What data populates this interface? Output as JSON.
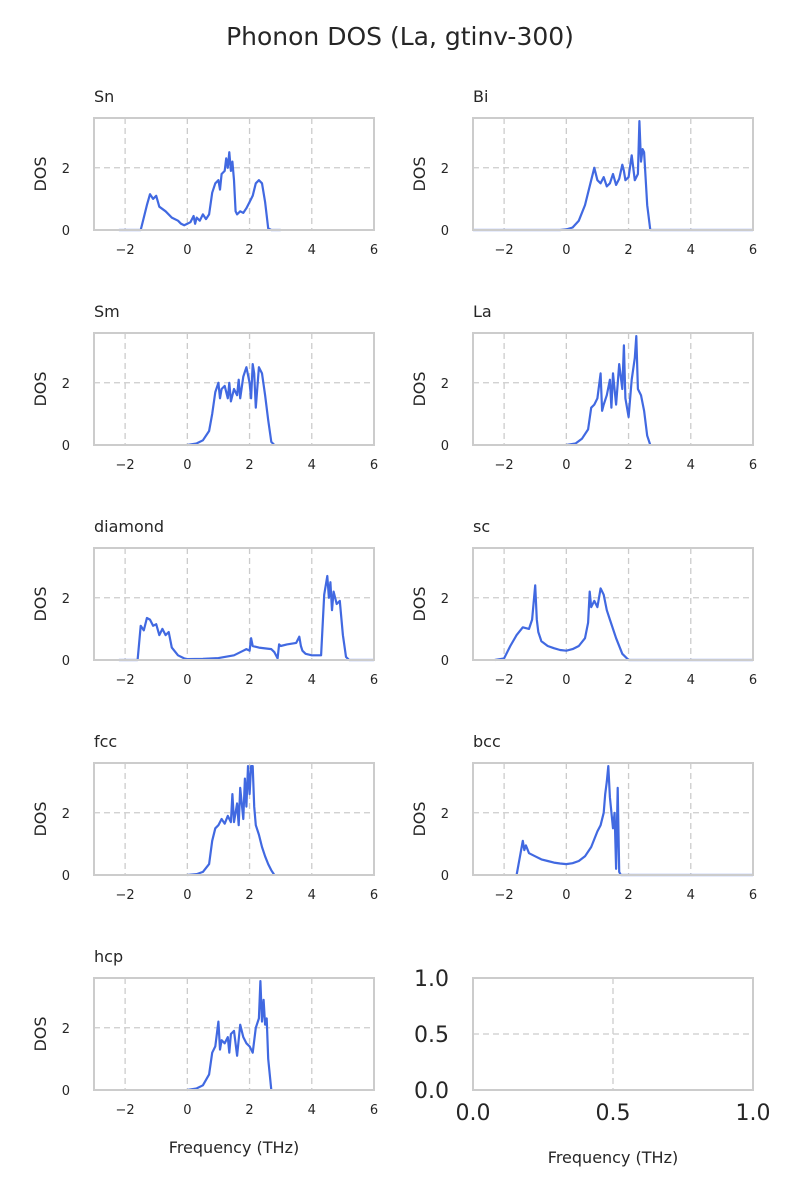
{
  "figure": {
    "title": "Phonon DOS (La, gtinv-300)"
  },
  "colors": {
    "series": "#4169e1",
    "frame": "#cccccc",
    "grid": "#cccccc",
    "text": "#262626"
  },
  "chart_data": [
    {
      "type": "line",
      "title": "Sn",
      "xlabel": "",
      "ylabel": "DOS",
      "xlim": [
        -3,
        6
      ],
      "ylim": [
        0,
        3.6
      ],
      "xticks": [
        "−2",
        "0",
        "2",
        "4",
        "6"
      ],
      "yticks": [
        "0",
        "2"
      ],
      "grid": true,
      "series": [
        {
          "x": [
            -2.2,
            -1.5,
            -1.4,
            -1.3,
            -1.2,
            -1.1,
            -1.0,
            -0.9,
            -0.7,
            -0.5,
            -0.3,
            -0.2,
            -0.1,
            0.0,
            0.1,
            0.2,
            0.25,
            0.3,
            0.4,
            0.5,
            0.6,
            0.7,
            0.8,
            0.9,
            1.0,
            1.05,
            1.1,
            1.2,
            1.25,
            1.3,
            1.35,
            1.4,
            1.45,
            1.5,
            1.55,
            1.6,
            1.7,
            1.8,
            1.9,
            2.0,
            2.1,
            2.2,
            2.3,
            2.4,
            2.5,
            2.6,
            2.7,
            3.0
          ],
          "y": [
            0,
            0,
            0.4,
            0.8,
            1.15,
            1.0,
            1.1,
            0.75,
            0.6,
            0.4,
            0.3,
            0.2,
            0.15,
            0.2,
            0.25,
            0.45,
            0.2,
            0.4,
            0.3,
            0.5,
            0.35,
            0.5,
            1.2,
            1.5,
            1.6,
            1.3,
            1.8,
            1.9,
            2.3,
            2.0,
            2.5,
            1.9,
            2.2,
            1.6,
            0.6,
            0.5,
            0.6,
            0.55,
            0.7,
            0.9,
            1.1,
            1.5,
            1.6,
            1.5,
            0.9,
            0.05,
            0,
            0
          ]
        }
      ]
    },
    {
      "type": "line",
      "title": "Bi",
      "xlabel": "",
      "ylabel": "DOS",
      "xlim": [
        -3,
        6
      ],
      "ylim": [
        0,
        3.6
      ],
      "xticks": [
        "−2",
        "0",
        "2",
        "4",
        "6"
      ],
      "yticks": [
        "0",
        "2"
      ],
      "grid": true,
      "series": [
        {
          "x": [
            -3.0,
            -0.2,
            0.0,
            0.2,
            0.4,
            0.6,
            0.8,
            0.9,
            1.0,
            1.1,
            1.2,
            1.3,
            1.4,
            1.5,
            1.6,
            1.7,
            1.8,
            1.85,
            1.9,
            2.0,
            2.1,
            2.2,
            2.3,
            2.35,
            2.4,
            2.45,
            2.5,
            2.6,
            2.7,
            2.8,
            6.0
          ],
          "y": [
            0,
            0,
            0.02,
            0.08,
            0.3,
            0.8,
            1.6,
            2.0,
            1.6,
            1.5,
            1.7,
            1.4,
            1.5,
            1.8,
            1.45,
            1.65,
            2.1,
            1.9,
            1.6,
            1.7,
            2.4,
            1.6,
            1.8,
            3.5,
            2.2,
            2.6,
            2.5,
            0.8,
            0,
            0,
            0
          ]
        }
      ]
    },
    {
      "type": "line",
      "title": "Sm",
      "xlabel": "",
      "ylabel": "DOS",
      "xlim": [
        -3,
        6
      ],
      "ylim": [
        0,
        3.6
      ],
      "xticks": [
        "−2",
        "0",
        "2",
        "4",
        "6"
      ],
      "yticks": [
        "0",
        "2"
      ],
      "grid": true,
      "series": [
        {
          "x": [
            0.0,
            0.3,
            0.5,
            0.7,
            0.8,
            0.9,
            1.0,
            1.05,
            1.1,
            1.2,
            1.3,
            1.35,
            1.4,
            1.5,
            1.6,
            1.65,
            1.7,
            1.8,
            1.9,
            2.0,
            2.05,
            2.1,
            2.15,
            2.2,
            2.3,
            2.4,
            2.5,
            2.6,
            2.7,
            2.8
          ],
          "y": [
            0,
            0.05,
            0.15,
            0.45,
            1.0,
            1.7,
            2.0,
            1.5,
            1.8,
            1.9,
            1.5,
            2.0,
            1.4,
            1.8,
            1.6,
            2.1,
            1.5,
            2.2,
            2.5,
            2.0,
            1.5,
            2.6,
            2.3,
            1.2,
            2.5,
            2.3,
            1.6,
            0.8,
            0.1,
            0
          ]
        }
      ]
    },
    {
      "type": "line",
      "title": "La",
      "xlabel": "",
      "ylabel": "DOS",
      "xlim": [
        -3,
        6
      ],
      "ylim": [
        0,
        3.6
      ],
      "xticks": [
        "−2",
        "0",
        "2",
        "4",
        "6"
      ],
      "yticks": [
        "0",
        "2"
      ],
      "grid": true,
      "series": [
        {
          "x": [
            0.0,
            0.3,
            0.5,
            0.7,
            0.8,
            0.9,
            1.0,
            1.1,
            1.15,
            1.2,
            1.3,
            1.4,
            1.45,
            1.5,
            1.6,
            1.7,
            1.8,
            1.85,
            1.9,
            2.0,
            2.1,
            2.2,
            2.25,
            2.3,
            2.4,
            2.5,
            2.6,
            2.7
          ],
          "y": [
            0,
            0.05,
            0.2,
            0.5,
            1.2,
            1.3,
            1.5,
            2.3,
            1.1,
            1.3,
            1.6,
            2.1,
            1.2,
            2.3,
            1.3,
            2.6,
            1.8,
            3.2,
            1.5,
            0.9,
            2.1,
            2.8,
            3.5,
            1.8,
            1.6,
            1.1,
            0.3,
            0
          ]
        }
      ]
    },
    {
      "type": "line",
      "title": "diamond",
      "xlabel": "",
      "ylabel": "DOS",
      "xlim": [
        -3,
        6
      ],
      "ylim": [
        0,
        3.6
      ],
      "xticks": [
        "−2",
        "0",
        "2",
        "4",
        "6"
      ],
      "yticks": [
        "0",
        "2"
      ],
      "grid": true,
      "series": [
        {
          "x": [
            -2.2,
            -1.6,
            -1.5,
            -1.4,
            -1.3,
            -1.2,
            -1.1,
            -1.0,
            -0.9,
            -0.8,
            -0.7,
            -0.6,
            -0.5,
            -0.3,
            -0.1,
            0.0,
            0.5,
            1.0,
            1.5,
            1.8,
            1.9,
            2.0,
            2.05,
            2.1,
            2.3,
            2.7,
            2.8,
            2.9,
            2.95,
            3.0,
            3.2,
            3.5,
            3.6,
            3.65,
            3.7,
            3.8,
            4.0,
            4.3,
            4.4,
            4.5,
            4.55,
            4.6,
            4.65,
            4.7,
            4.8,
            4.9,
            5.0,
            5.1,
            5.2,
            6.0
          ],
          "y": [
            0,
            0,
            1.1,
            0.95,
            1.35,
            1.3,
            1.1,
            1.15,
            0.8,
            1.0,
            0.8,
            0.9,
            0.4,
            0.15,
            0.05,
            0.03,
            0.04,
            0.06,
            0.15,
            0.3,
            0.35,
            0.3,
            0.7,
            0.45,
            0.4,
            0.35,
            0.25,
            0.05,
            0.5,
            0.45,
            0.5,
            0.55,
            0.75,
            0.45,
            0.3,
            0.2,
            0.15,
            0.15,
            2.1,
            2.7,
            2.0,
            2.5,
            1.6,
            2.2,
            1.8,
            1.9,
            0.8,
            0.1,
            0,
            0
          ]
        }
      ]
    },
    {
      "type": "line",
      "title": "sc",
      "xlabel": "",
      "ylabel": "DOS",
      "xlim": [
        -3,
        6
      ],
      "ylim": [
        0,
        3.6
      ],
      "xticks": [
        "−2",
        "0",
        "2",
        "4",
        "6"
      ],
      "yticks": [
        "0",
        "2"
      ],
      "grid": true,
      "series": [
        {
          "x": [
            -2.3,
            -2.0,
            -1.8,
            -1.6,
            -1.4,
            -1.2,
            -1.1,
            -1.0,
            -0.95,
            -0.9,
            -0.8,
            -0.6,
            -0.4,
            -0.2,
            0.0,
            0.2,
            0.4,
            0.6,
            0.7,
            0.75,
            0.8,
            0.9,
            1.0,
            1.1,
            1.2,
            1.3,
            1.4,
            1.6,
            1.8,
            2.0,
            6.0
          ],
          "y": [
            0,
            0.05,
            0.45,
            0.8,
            1.05,
            1.0,
            1.3,
            2.4,
            1.3,
            0.9,
            0.6,
            0.45,
            0.38,
            0.32,
            0.3,
            0.35,
            0.45,
            0.7,
            1.2,
            2.2,
            1.7,
            1.9,
            1.7,
            2.3,
            2.1,
            1.6,
            1.3,
            0.7,
            0.2,
            0,
            0
          ]
        }
      ]
    },
    {
      "type": "line",
      "title": "fcc",
      "xlabel": "",
      "ylabel": "DOS",
      "xlim": [
        -3,
        6
      ],
      "ylim": [
        0,
        3.6
      ],
      "xticks": [
        "−2",
        "0",
        "2",
        "4",
        "6"
      ],
      "yticks": [
        "0",
        "2"
      ],
      "grid": true,
      "series": [
        {
          "x": [
            0.0,
            0.3,
            0.5,
            0.7,
            0.8,
            0.9,
            1.0,
            1.1,
            1.2,
            1.3,
            1.4,
            1.45,
            1.5,
            1.6,
            1.65,
            1.7,
            1.8,
            1.85,
            1.9,
            1.95,
            2.0,
            2.05,
            2.1,
            2.15,
            2.2,
            2.3,
            2.4,
            2.5,
            2.6,
            2.7,
            2.8
          ],
          "y": [
            0,
            0.03,
            0.1,
            0.35,
            1.1,
            1.5,
            1.6,
            1.8,
            1.65,
            1.9,
            1.7,
            2.6,
            1.7,
            2.3,
            1.6,
            2.8,
            1.8,
            3.1,
            2.2,
            3.5,
            2.6,
            3.5,
            3.5,
            2.2,
            1.6,
            1.3,
            0.9,
            0.6,
            0.35,
            0.15,
            0
          ]
        }
      ]
    },
    {
      "type": "line",
      "title": "bcc",
      "xlabel": "",
      "ylabel": "DOS",
      "xlim": [
        -3,
        6
      ],
      "ylim": [
        0,
        3.6
      ],
      "xticks": [
        "−2",
        "0",
        "2",
        "4",
        "6"
      ],
      "yticks": [
        "0",
        "2"
      ],
      "grid": true,
      "series": [
        {
          "x": [
            -1.6,
            -1.5,
            -1.4,
            -1.35,
            -1.3,
            -1.2,
            -1.0,
            -0.8,
            -0.6,
            -0.4,
            -0.2,
            0.0,
            0.2,
            0.4,
            0.6,
            0.8,
            1.0,
            1.1,
            1.2,
            1.25,
            1.3,
            1.35,
            1.4,
            1.5,
            1.55,
            1.6,
            1.65,
            1.7,
            1.75,
            6.0
          ],
          "y": [
            0,
            0.55,
            1.1,
            0.8,
            0.95,
            0.7,
            0.6,
            0.5,
            0.45,
            0.4,
            0.37,
            0.35,
            0.38,
            0.45,
            0.6,
            0.9,
            1.4,
            1.6,
            2.0,
            2.6,
            3.0,
            3.5,
            2.5,
            1.5,
            2.0,
            0.2,
            2.8,
            0.1,
            0,
            0
          ]
        }
      ]
    },
    {
      "type": "line",
      "title": "hcp",
      "xlabel": "Frequency (THz)",
      "ylabel": "DOS",
      "xlim": [
        -3,
        6
      ],
      "ylim": [
        0,
        3.6
      ],
      "xticks": [
        "−2",
        "0",
        "2",
        "4",
        "6"
      ],
      "yticks": [
        "0",
        "2"
      ],
      "grid": true,
      "series": [
        {
          "x": [
            0.0,
            0.3,
            0.5,
            0.7,
            0.8,
            0.9,
            1.0,
            1.05,
            1.1,
            1.2,
            1.3,
            1.35,
            1.4,
            1.5,
            1.6,
            1.7,
            1.8,
            1.9,
            2.0,
            2.1,
            2.2,
            2.3,
            2.35,
            2.4,
            2.45,
            2.5,
            2.55,
            2.6,
            2.7
          ],
          "y": [
            0,
            0.05,
            0.15,
            0.5,
            1.2,
            1.4,
            2.2,
            1.3,
            1.6,
            1.5,
            1.7,
            1.2,
            1.8,
            1.9,
            1.1,
            2.1,
            1.7,
            1.5,
            1.4,
            1.2,
            2.0,
            2.3,
            3.5,
            2.2,
            2.9,
            2.1,
            2.3,
            1.0,
            0
          ]
        }
      ]
    },
    {
      "type": "line",
      "title": "",
      "xlabel": "Frequency (THz)",
      "ylabel": "",
      "xlim": [
        0,
        1
      ],
      "ylim": [
        0,
        1
      ],
      "xticks": [
        "0.0",
        "0.5",
        "1.0"
      ],
      "yticks": [
        "0.0",
        "0.5",
        "1.0"
      ],
      "grid": true,
      "series": []
    }
  ]
}
